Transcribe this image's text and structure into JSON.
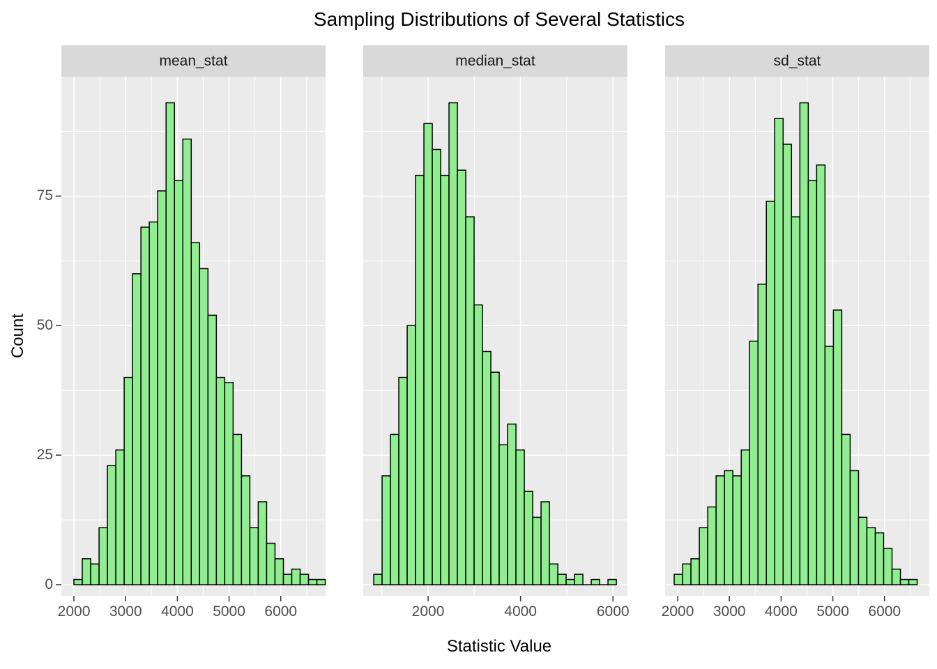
{
  "title": "Sampling Distributions of Several Statistics",
  "axis": {
    "x_label": "Statistic Value",
    "y_label": "Count"
  },
  "y_axis": {
    "ticks": [
      0,
      25,
      50,
      75
    ],
    "minor": [
      12.5,
      37.5,
      62.5,
      87.5
    ],
    "lim": [
      -2.2,
      98.1
    ]
  },
  "chart_data": [
    {
      "type": "bar",
      "facet": "mean_stat",
      "xlim": [
        1757,
        6866
      ],
      "bin_start": 2000,
      "bin_width": 162,
      "x_ticks": [
        2000,
        3000,
        4000,
        5000,
        6000
      ],
      "x_minor": [
        2500,
        3500,
        4500,
        5500,
        6500
      ],
      "counts": [
        1,
        5,
        4,
        11,
        23,
        26,
        40,
        60,
        69,
        70,
        76,
        93,
        78,
        86,
        66,
        61,
        52,
        40,
        39,
        29,
        21,
        11,
        16,
        8,
        5,
        2,
        3,
        2,
        1,
        1
      ]
    },
    {
      "type": "bar",
      "facet": "median_stat",
      "xlim": [
        597,
        6313
      ],
      "bin_start": 824,
      "bin_width": 181,
      "x_ticks": [
        2000,
        4000,
        6000
      ],
      "x_minor": [
        1000,
        3000,
        5000
      ],
      "counts": [
        2,
        21,
        29,
        40,
        50,
        79,
        89,
        84,
        79,
        93,
        80,
        71,
        54,
        45,
        41,
        27,
        31,
        26,
        18,
        13,
        16,
        4,
        2,
        1,
        2,
        0,
        1,
        0,
        1
      ]
    },
    {
      "type": "bar",
      "facet": "sd_stat",
      "xlim": [
        1757,
        6866
      ],
      "bin_start": 1933,
      "bin_width": 162,
      "x_ticks": [
        2000,
        3000,
        4000,
        5000,
        6000
      ],
      "x_minor": [
        2500,
        3500,
        4500,
        5500,
        6500
      ],
      "counts": [
        2,
        4,
        5,
        11,
        15,
        21,
        22,
        21,
        26,
        47,
        58,
        74,
        90,
        85,
        71,
        93,
        78,
        81,
        46,
        53,
        29,
        22,
        13,
        11,
        10,
        7,
        3,
        1,
        1
      ]
    }
  ],
  "colors": {
    "page_bg": "#FFFFFF",
    "panel_bg": "#EBEBEB",
    "strip_bg": "#D9D9D9",
    "strip_text": "#1A1A1A",
    "grid": "#FFFFFF",
    "bar_fill": "#90EE90",
    "bar_stroke": "#000000",
    "tick_label": "#4D4D4D",
    "tick_mark": "#333333",
    "text": "#000000"
  }
}
